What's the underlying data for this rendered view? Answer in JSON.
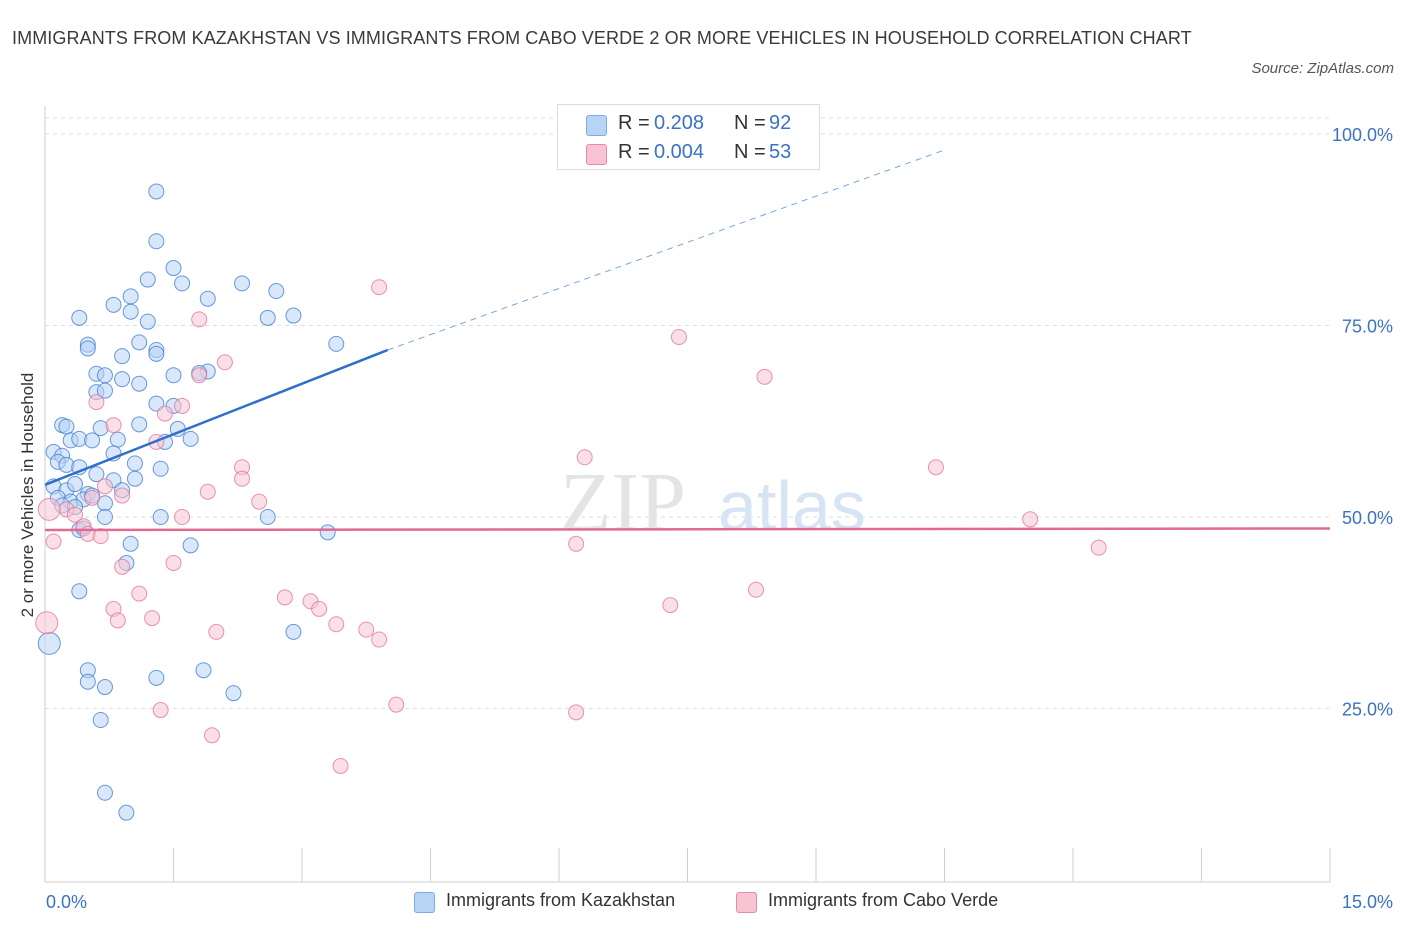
{
  "header": {
    "title": "IMMIGRANTS FROM KAZAKHSTAN VS IMMIGRANTS FROM CABO VERDE 2 OR MORE VEHICLES IN HOUSEHOLD CORRELATION CHART",
    "source": "Source: ZipAtlas.com"
  },
  "watermark": {
    "zip": "ZIP",
    "atlas": "atlas"
  },
  "legend": {
    "r_label": "R =",
    "n_label": "N =",
    "series": [
      {
        "r": "0.208",
        "n": "92",
        "color": "#7aaee8",
        "fill": "#b8d4f4"
      },
      {
        "r": "0.004",
        "n": "53",
        "color": "#e78aa8",
        "fill": "#f7c4d4"
      }
    ]
  },
  "chart_data": {
    "type": "scatter",
    "ylabel": "2 or more Vehicles in Household",
    "x_range": [
      0,
      15
    ],
    "y_range": [
      0,
      100
    ],
    "x_tick_labels": [
      "0.0%",
      "15.0%"
    ],
    "y_tick_labels": [
      "100.0%",
      "75.0%",
      "50.0%",
      "25.0%"
    ],
    "y_ticks": [
      100,
      75,
      50,
      25
    ],
    "grid": true,
    "series": [
      {
        "name": "Immigrants from Kazakhstan",
        "color": "#3a78cc",
        "fill": "#b8d4f4",
        "trend": {
          "x0": 0,
          "y0": 54.2,
          "x1": 4.0,
          "y1": 71.8,
          "dashed_to_x": 10.5,
          "dashed_to_y": 100
        },
        "points": [
          [
            1.3,
            92.5
          ],
          [
            1.3,
            86.0
          ],
          [
            1.5,
            82.5
          ],
          [
            1.2,
            81.0
          ],
          [
            1.6,
            80.5
          ],
          [
            2.3,
            80.5
          ],
          [
            1.0,
            78.8
          ],
          [
            1.9,
            78.5
          ],
          [
            2.7,
            79.5
          ],
          [
            0.8,
            77.7
          ],
          [
            1.0,
            76.8
          ],
          [
            0.4,
            76.0
          ],
          [
            1.2,
            75.5
          ],
          [
            2.6,
            76.0
          ],
          [
            2.9,
            76.3
          ],
          [
            0.5,
            72.5
          ],
          [
            0.5,
            72.0
          ],
          [
            1.1,
            72.8
          ],
          [
            1.3,
            71.8
          ],
          [
            1.3,
            71.3
          ],
          [
            3.4,
            72.6
          ],
          [
            0.9,
            71.0
          ],
          [
            0.6,
            68.7
          ],
          [
            0.7,
            68.5
          ],
          [
            1.5,
            68.5
          ],
          [
            1.9,
            69.0
          ],
          [
            1.8,
            68.8
          ],
          [
            0.9,
            68.0
          ],
          [
            1.1,
            67.4
          ],
          [
            0.6,
            66.3
          ],
          [
            0.7,
            66.5
          ],
          [
            1.5,
            64.5
          ],
          [
            1.3,
            64.8
          ],
          [
            0.2,
            62.0
          ],
          [
            0.25,
            61.8
          ],
          [
            0.65,
            61.6
          ],
          [
            1.1,
            62.1
          ],
          [
            1.55,
            61.5
          ],
          [
            0.3,
            60.0
          ],
          [
            0.4,
            60.2
          ],
          [
            0.55,
            60.0
          ],
          [
            0.85,
            60.1
          ],
          [
            1.4,
            59.8
          ],
          [
            1.7,
            60.2
          ],
          [
            0.1,
            58.5
          ],
          [
            0.2,
            58.0
          ],
          [
            0.8,
            58.3
          ],
          [
            0.15,
            57.2
          ],
          [
            0.25,
            56.8
          ],
          [
            0.4,
            56.5
          ],
          [
            1.05,
            57.0
          ],
          [
            1.35,
            56.3
          ],
          [
            0.6,
            55.6
          ],
          [
            0.8,
            54.8
          ],
          [
            1.05,
            55.0
          ],
          [
            0.1,
            54.0
          ],
          [
            0.25,
            53.5
          ],
          [
            0.35,
            54.3
          ],
          [
            0.5,
            53.0
          ],
          [
            0.9,
            53.5
          ],
          [
            0.15,
            52.5
          ],
          [
            0.3,
            52.0
          ],
          [
            0.45,
            52.3
          ],
          [
            0.55,
            52.8
          ],
          [
            0.7,
            51.8
          ],
          [
            0.2,
            51.5
          ],
          [
            0.35,
            51.3
          ],
          [
            1.35,
            50.0
          ],
          [
            0.7,
            50.0
          ],
          [
            2.6,
            50.0
          ],
          [
            0.4,
            48.3
          ],
          [
            0.45,
            48.5
          ],
          [
            3.3,
            48.0
          ],
          [
            1.0,
            46.5
          ],
          [
            1.7,
            46.3
          ],
          [
            0.95,
            44.0
          ],
          [
            0.4,
            40.3
          ],
          [
            2.9,
            35.0
          ],
          [
            0.05,
            33.5
          ],
          [
            1.85,
            30.0
          ],
          [
            0.5,
            30.0
          ],
          [
            0.5,
            28.5
          ],
          [
            1.3,
            29.0
          ],
          [
            0.7,
            27.8
          ],
          [
            2.2,
            27.0
          ],
          [
            0.65,
            23.5
          ],
          [
            0.7,
            14.0
          ],
          [
            0.95,
            11.4
          ]
        ],
        "big_points": [
          [
            0.05,
            33.5
          ]
        ]
      },
      {
        "name": "Immigrants from Cabo Verde",
        "color": "#e07098",
        "fill": "#f7c4d4",
        "trend": {
          "x0": 0,
          "y0": 48.3,
          "x1": 15,
          "y1": 48.5
        },
        "points": [
          [
            3.9,
            80.0
          ],
          [
            1.8,
            75.8
          ],
          [
            7.4,
            73.5
          ],
          [
            2.1,
            70.2
          ],
          [
            8.4,
            68.3
          ],
          [
            1.8,
            68.5
          ],
          [
            0.6,
            65.0
          ],
          [
            1.6,
            64.5
          ],
          [
            1.3,
            59.8
          ],
          [
            1.4,
            63.5
          ],
          [
            0.8,
            62.0
          ],
          [
            6.3,
            57.8
          ],
          [
            10.4,
            56.5
          ],
          [
            2.3,
            56.5
          ],
          [
            2.3,
            55.0
          ],
          [
            0.7,
            54.0
          ],
          [
            1.9,
            53.3
          ],
          [
            2.5,
            52.0
          ],
          [
            0.55,
            52.5
          ],
          [
            0.9,
            52.8
          ],
          [
            0.25,
            51.0
          ],
          [
            0.35,
            50.3
          ],
          [
            1.6,
            50.0
          ],
          [
            11.5,
            49.7
          ],
          [
            0.45,
            48.8
          ],
          [
            0.5,
            47.8
          ],
          [
            0.65,
            47.5
          ],
          [
            0.1,
            46.8
          ],
          [
            6.2,
            46.5
          ],
          [
            12.3,
            46.0
          ],
          [
            0.9,
            43.5
          ],
          [
            1.5,
            44.0
          ],
          [
            8.3,
            40.5
          ],
          [
            1.1,
            40.0
          ],
          [
            2.8,
            39.5
          ],
          [
            3.1,
            39.0
          ],
          [
            3.2,
            38.0
          ],
          [
            0.8,
            38.0
          ],
          [
            7.3,
            38.5
          ],
          [
            0.85,
            36.5
          ],
          [
            1.25,
            36.8
          ],
          [
            3.4,
            36.0
          ],
          [
            3.75,
            35.3
          ],
          [
            2.0,
            35.0
          ],
          [
            3.9,
            34.0
          ],
          [
            0.02,
            36.2
          ],
          [
            1.35,
            24.8
          ],
          [
            4.1,
            25.5
          ],
          [
            6.2,
            24.5
          ],
          [
            1.95,
            21.5
          ],
          [
            3.45,
            17.5
          ],
          [
            0.05,
            51.0
          ]
        ],
        "big_points": [
          [
            0.02,
            36.2
          ],
          [
            0.05,
            51.0
          ]
        ]
      }
    ]
  }
}
